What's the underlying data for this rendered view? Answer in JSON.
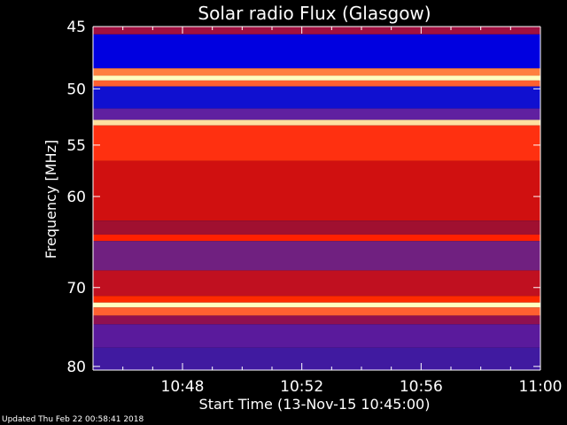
{
  "page": {
    "updated_text": "Updated Thu Feb 22 00:58:41 2018"
  },
  "chart_data": {
    "type": "heatmap",
    "title": "Solar radio Flux (Glasgow)",
    "xlabel": "Start Time (13-Nov-15 10:45:00)",
    "ylabel": "Frequency [MHz]",
    "xlim_minutes_after_start": [
      0,
      15
    ],
    "ylim": [
      45,
      80.5
    ],
    "y_ticks": [
      45,
      50,
      55,
      60,
      70,
      80
    ],
    "y_scale": "log",
    "x_ticks": [
      {
        "label": "10:48",
        "value": 3
      },
      {
        "label": "10:52",
        "value": 7
      },
      {
        "label": "10:56",
        "value": 11
      },
      {
        "label": "11:00",
        "value": 15
      }
    ],
    "colormap": [
      "#000020",
      "#0000ff",
      "#5a2a9c",
      "#b00020",
      "#ff2000",
      "#ff8040",
      "#ffffc0"
    ],
    "frequency_bands": [
      {
        "from": 45,
        "to": 45.6,
        "color": "#a01040"
      },
      {
        "from": 45.6,
        "to": 48.3,
        "color": "#0000e0"
      },
      {
        "from": 48.3,
        "to": 48.9,
        "color": "#ff8040"
      },
      {
        "from": 48.9,
        "to": 49.3,
        "color": "#ffffc0"
      },
      {
        "from": 49.3,
        "to": 49.8,
        "color": "#ff6030"
      },
      {
        "from": 49.8,
        "to": 51.7,
        "color": "#1010d0"
      },
      {
        "from": 51.7,
        "to": 52.7,
        "color": "#6020a0"
      },
      {
        "from": 52.7,
        "to": 53.2,
        "color": "#ffe0a0"
      },
      {
        "from": 53.2,
        "to": 56.5,
        "color": "#ff3010"
      },
      {
        "from": 56.5,
        "to": 62.5,
        "color": "#d01010"
      },
      {
        "from": 62.5,
        "to": 64.0,
        "color": "#a01030"
      },
      {
        "from": 64.0,
        "to": 64.7,
        "color": "#ff2000"
      },
      {
        "from": 64.7,
        "to": 68.0,
        "color": "#702080"
      },
      {
        "from": 68.0,
        "to": 71.0,
        "color": "#c01020"
      },
      {
        "from": 71.0,
        "to": 71.8,
        "color": "#ff2a00"
      },
      {
        "from": 71.8,
        "to": 72.4,
        "color": "#ffffc0"
      },
      {
        "from": 72.4,
        "to": 73.4,
        "color": "#ff6030"
      },
      {
        "from": 73.4,
        "to": 74.5,
        "color": "#901050"
      },
      {
        "from": 74.5,
        "to": 77.5,
        "color": "#5a1a9c"
      },
      {
        "from": 77.5,
        "to": 80.5,
        "color": "#401aa0"
      }
    ]
  }
}
